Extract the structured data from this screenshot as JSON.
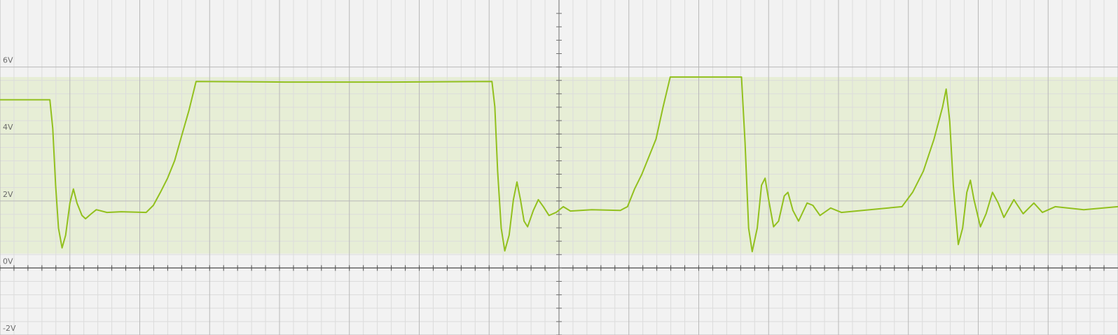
{
  "chart_data": {
    "type": "line",
    "xlim": [
      0,
      16
    ],
    "xticks": [
      0,
      1,
      2,
      3,
      4,
      5,
      6,
      7,
      8,
      9,
      10,
      11,
      12,
      13,
      14,
      15,
      16
    ],
    "ylim": [
      -2,
      8
    ],
    "yticks": [
      {
        "value": -2,
        "label": "-2V"
      },
      {
        "value": 0,
        "label": "0V"
      },
      {
        "value": 2,
        "label": "2V"
      },
      {
        "value": 4,
        "label": "4V"
      },
      {
        "value": 6,
        "label": "6V"
      }
    ],
    "grid": true,
    "minor_divisions": 5,
    "highlight_range": [
      0.43,
      5.7
    ],
    "highlight_color": "#e7eed6",
    "series": [
      {
        "color": "#92c01e",
        "x": [
          0,
          0.714,
          0.755,
          0.796,
          0.837,
          0.888,
          0.939,
          1.0,
          1.051,
          1.102,
          1.173,
          1.224,
          1.306,
          1.378,
          1.531,
          1.735,
          2.092,
          2.194,
          2.296,
          2.398,
          2.5,
          2.602,
          2.704,
          2.806,
          4.082,
          5.612,
          7.041,
          7.082,
          7.122,
          7.173,
          7.224,
          7.286,
          7.347,
          7.398,
          7.449,
          7.5,
          7.551,
          7.633,
          7.704,
          7.776,
          7.857,
          7.959,
          8.061,
          8.163,
          8.469,
          8.878,
          8.98,
          9.082,
          9.184,
          9.286,
          9.388,
          9.49,
          9.592,
          10.612,
          10.663,
          10.714,
          10.765,
          10.837,
          10.898,
          10.949,
          11.0,
          11.071,
          11.143,
          11.224,
          11.276,
          11.347,
          11.429,
          11.551,
          11.633,
          11.735,
          11.888,
          12.041,
          12.449,
          12.908,
          13.061,
          13.214,
          13.367,
          13.49,
          13.541,
          13.592,
          13.643,
          13.714,
          13.776,
          13.837,
          13.888,
          13.939,
          14.031,
          14.112,
          14.204,
          14.286,
          14.367,
          14.51,
          14.643,
          14.796,
          14.918,
          15.102,
          15.51,
          16.0
        ],
        "values": [
          5.02,
          5.02,
          4.17,
          2.47,
          1.19,
          0.6,
          0.98,
          1.94,
          2.36,
          1.94,
          1.57,
          1.47,
          1.62,
          1.74,
          1.66,
          1.68,
          1.66,
          1.87,
          2.26,
          2.68,
          3.21,
          3.96,
          4.7,
          5.57,
          5.55,
          5.55,
          5.57,
          4.81,
          2.89,
          1.19,
          0.51,
          0.98,
          2.04,
          2.57,
          2.04,
          1.4,
          1.23,
          1.72,
          2.04,
          1.83,
          1.57,
          1.66,
          1.83,
          1.7,
          1.74,
          1.72,
          1.83,
          2.36,
          2.79,
          3.32,
          3.85,
          4.81,
          5.7,
          5.7,
          3.74,
          1.19,
          0.49,
          1.19,
          2.47,
          2.68,
          2.04,
          1.23,
          1.4,
          2.15,
          2.26,
          1.72,
          1.4,
          1.94,
          1.87,
          1.57,
          1.79,
          1.66,
          1.74,
          1.83,
          2.26,
          2.89,
          3.85,
          4.81,
          5.34,
          4.38,
          2.47,
          0.7,
          1.19,
          2.26,
          2.62,
          2.04,
          1.23,
          1.62,
          2.26,
          1.94,
          1.51,
          2.04,
          1.62,
          1.94,
          1.66,
          1.83,
          1.74,
          1.83
        ]
      }
    ]
  }
}
